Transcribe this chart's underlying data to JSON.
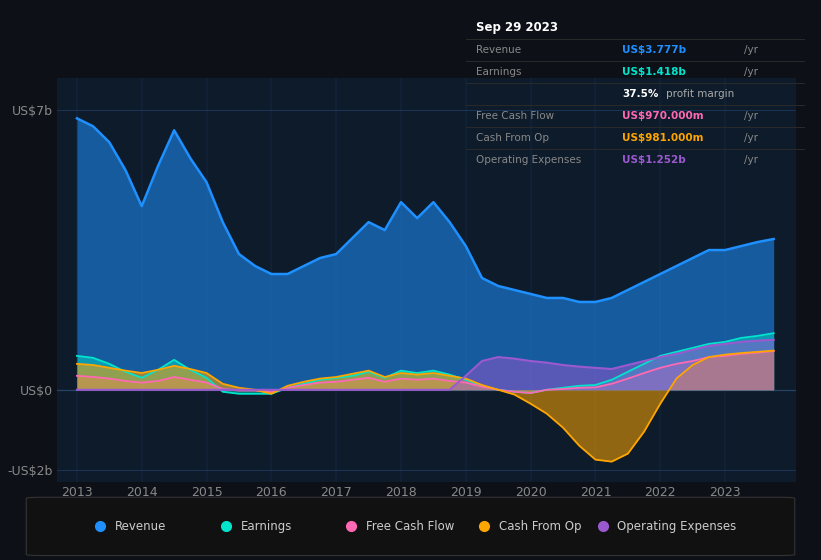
{
  "bg_color": "#0d1117",
  "plot_bg_color": "#0d1b2a",
  "grid_color": "#1e3a5f",
  "ylim": [
    -2.3,
    7.8
  ],
  "xlim": [
    2012.7,
    2024.1
  ],
  "xticks": [
    2013,
    2014,
    2015,
    2016,
    2017,
    2018,
    2019,
    2020,
    2021,
    2022,
    2023
  ],
  "ytick_vals": [
    7,
    0,
    -2
  ],
  "ytick_labels": [
    "US$7b",
    "US$0",
    "-US$2b"
  ],
  "series_colors": {
    "revenue": "#1e90ff",
    "earnings": "#00e5cc",
    "free_cash_flow": "#ff69b4",
    "cash_from_op": "#ffa500",
    "operating_expenses": "#9b59d0"
  },
  "legend_items": [
    "Revenue",
    "Earnings",
    "Free Cash Flow",
    "Cash From Op",
    "Operating Expenses"
  ],
  "legend_colors": [
    "#1e90ff",
    "#00e5cc",
    "#ff69b4",
    "#ffa500",
    "#9b59d0"
  ],
  "revenue_x": [
    2013.0,
    2013.25,
    2013.5,
    2013.75,
    2014.0,
    2014.25,
    2014.5,
    2014.75,
    2015.0,
    2015.25,
    2015.5,
    2015.75,
    2016.0,
    2016.25,
    2016.5,
    2016.75,
    2017.0,
    2017.25,
    2017.5,
    2017.75,
    2018.0,
    2018.25,
    2018.5,
    2018.75,
    2019.0,
    2019.25,
    2019.5,
    2019.75,
    2020.0,
    2020.25,
    2020.5,
    2020.75,
    2021.0,
    2021.25,
    2021.5,
    2021.75,
    2022.0,
    2022.25,
    2022.5,
    2022.75,
    2023.0,
    2023.25,
    2023.5,
    2023.75
  ],
  "revenue_y": [
    6.8,
    6.6,
    6.2,
    5.5,
    4.6,
    5.6,
    6.5,
    5.8,
    5.2,
    4.2,
    3.4,
    3.1,
    2.9,
    2.9,
    3.1,
    3.3,
    3.4,
    3.8,
    4.2,
    4.0,
    4.7,
    4.3,
    4.7,
    4.2,
    3.6,
    2.8,
    2.6,
    2.5,
    2.4,
    2.3,
    2.3,
    2.2,
    2.2,
    2.3,
    2.5,
    2.7,
    2.9,
    3.1,
    3.3,
    3.5,
    3.5,
    3.6,
    3.7,
    3.777
  ],
  "earnings_x": [
    2013.0,
    2013.25,
    2013.5,
    2013.75,
    2014.0,
    2014.25,
    2014.5,
    2014.75,
    2015.0,
    2015.25,
    2015.5,
    2015.75,
    2016.0,
    2016.25,
    2016.5,
    2016.75,
    2017.0,
    2017.25,
    2017.5,
    2017.75,
    2018.0,
    2018.25,
    2018.5,
    2018.75,
    2019.0,
    2019.25,
    2019.5,
    2019.75,
    2020.0,
    2020.25,
    2020.5,
    2020.75,
    2021.0,
    2021.25,
    2021.5,
    2021.75,
    2022.0,
    2022.25,
    2022.5,
    2022.75,
    2023.0,
    2023.25,
    2023.5,
    2023.75
  ],
  "earnings_y": [
    0.85,
    0.8,
    0.65,
    0.45,
    0.3,
    0.5,
    0.75,
    0.5,
    0.3,
    -0.05,
    -0.1,
    -0.1,
    -0.1,
    0.05,
    0.15,
    0.25,
    0.3,
    0.35,
    0.45,
    0.3,
    0.48,
    0.42,
    0.48,
    0.38,
    0.25,
    0.1,
    0.0,
    -0.05,
    -0.08,
    0.0,
    0.05,
    0.1,
    0.12,
    0.25,
    0.45,
    0.65,
    0.85,
    0.95,
    1.05,
    1.15,
    1.2,
    1.3,
    1.35,
    1.418
  ],
  "fcf_x": [
    2013.0,
    2013.25,
    2013.5,
    2013.75,
    2014.0,
    2014.25,
    2014.5,
    2014.75,
    2015.0,
    2015.25,
    2015.5,
    2015.75,
    2016.0,
    2016.25,
    2016.5,
    2016.75,
    2017.0,
    2017.25,
    2017.5,
    2017.75,
    2018.0,
    2018.25,
    2018.5,
    2018.75,
    2019.0,
    2019.25,
    2019.5,
    2019.75,
    2020.0,
    2020.25,
    2020.5,
    2020.75,
    2021.0,
    2021.25,
    2021.5,
    2021.75,
    2022.0,
    2022.25,
    2022.5,
    2022.75,
    2023.0,
    2023.25,
    2023.5,
    2023.75
  ],
  "fcf_y": [
    0.35,
    0.32,
    0.28,
    0.22,
    0.18,
    0.22,
    0.32,
    0.25,
    0.18,
    0.02,
    -0.02,
    -0.02,
    -0.06,
    0.05,
    0.12,
    0.18,
    0.2,
    0.25,
    0.3,
    0.2,
    0.28,
    0.25,
    0.28,
    0.22,
    0.18,
    0.08,
    0.0,
    -0.05,
    -0.08,
    0.0,
    0.02,
    0.05,
    0.06,
    0.15,
    0.28,
    0.42,
    0.55,
    0.65,
    0.72,
    0.82,
    0.85,
    0.9,
    0.93,
    0.97
  ],
  "cfo_x": [
    2013.0,
    2013.25,
    2013.5,
    2013.75,
    2014.0,
    2014.25,
    2014.5,
    2014.75,
    2015.0,
    2015.25,
    2015.5,
    2015.75,
    2016.0,
    2016.25,
    2016.5,
    2016.75,
    2017.0,
    2017.25,
    2017.5,
    2017.75,
    2018.0,
    2018.25,
    2018.5,
    2018.75,
    2019.0,
    2019.25,
    2019.5,
    2019.75,
    2020.0,
    2020.25,
    2020.5,
    2020.75,
    2021.0,
    2021.25,
    2021.5,
    2021.75,
    2022.0,
    2022.25,
    2022.5,
    2022.75,
    2023.0,
    2023.25,
    2023.5,
    2023.75
  ],
  "cfo_y": [
    0.65,
    0.62,
    0.55,
    0.48,
    0.42,
    0.5,
    0.6,
    0.52,
    0.42,
    0.15,
    0.05,
    0.0,
    -0.1,
    0.1,
    0.2,
    0.28,
    0.32,
    0.4,
    0.48,
    0.32,
    0.42,
    0.38,
    0.42,
    0.35,
    0.28,
    0.12,
    0.0,
    -0.12,
    -0.35,
    -0.6,
    -0.95,
    -1.4,
    -1.75,
    -1.8,
    -1.6,
    -1.05,
    -0.35,
    0.28,
    0.62,
    0.82,
    0.88,
    0.92,
    0.95,
    0.981
  ],
  "opex_x": [
    2013.0,
    2013.25,
    2013.5,
    2013.75,
    2014.0,
    2014.25,
    2014.5,
    2014.75,
    2015.0,
    2015.25,
    2015.5,
    2015.75,
    2016.0,
    2016.25,
    2016.5,
    2016.75,
    2017.0,
    2017.25,
    2017.5,
    2017.75,
    2018.0,
    2018.25,
    2018.5,
    2018.75,
    2019.0,
    2019.25,
    2019.5,
    2019.75,
    2020.0,
    2020.25,
    2020.5,
    2020.75,
    2021.0,
    2021.25,
    2021.5,
    2021.75,
    2022.0,
    2022.25,
    2022.5,
    2022.75,
    2023.0,
    2023.25,
    2023.5,
    2023.75
  ],
  "opex_y": [
    0.0,
    0.0,
    0.0,
    0.0,
    0.0,
    0.0,
    0.0,
    0.0,
    0.0,
    0.0,
    0.0,
    0.0,
    0.0,
    0.0,
    0.0,
    0.0,
    0.0,
    0.0,
    0.0,
    0.0,
    0.0,
    0.0,
    0.0,
    0.0,
    0.35,
    0.72,
    0.82,
    0.78,
    0.72,
    0.68,
    0.62,
    0.58,
    0.55,
    0.52,
    0.62,
    0.72,
    0.82,
    0.9,
    1.0,
    1.1,
    1.15,
    1.2,
    1.23,
    1.252
  ],
  "tooltip": {
    "title": "Sep 29 2023",
    "rows": [
      {
        "label": "Revenue",
        "value": "US$3.777b",
        "value_color": "#1e90ff",
        "suffix": " /yr",
        "extra": null
      },
      {
        "label": "Earnings",
        "value": "US$1.418b",
        "value_color": "#00e5cc",
        "suffix": " /yr",
        "extra": "37.5% profit margin"
      },
      {
        "label": "Free Cash Flow",
        "value": "US$970.000m",
        "value_color": "#ff69b4",
        "suffix": " /yr",
        "extra": null
      },
      {
        "label": "Cash From Op",
        "value": "US$981.000m",
        "value_color": "#ffa500",
        "suffix": " /yr",
        "extra": null
      },
      {
        "label": "Operating Expenses",
        "value": "US$1.252b",
        "value_color": "#9b59d0",
        "suffix": " /yr",
        "extra": null
      }
    ]
  }
}
